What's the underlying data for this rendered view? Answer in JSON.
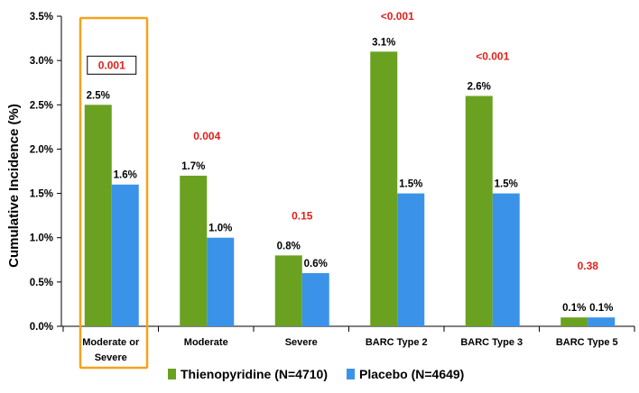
{
  "chart_data": {
    "type": "bar",
    "title": "",
    "xlabel": "",
    "ylabel": "Cumulative Incidence (%)",
    "ylim": [
      0,
      3.5
    ],
    "yticks": [
      "0.0%",
      "0.5%",
      "1.0%",
      "1.5%",
      "2.0%",
      "2.5%",
      "3.0%",
      "3.5%"
    ],
    "ytick_values": [
      0,
      0.5,
      1.0,
      1.5,
      2.0,
      2.5,
      3.0,
      3.5
    ],
    "grid": false,
    "legend_position": "bottom",
    "categories": [
      [
        "Moderate or",
        "Severe"
      ],
      [
        "Moderate"
      ],
      [
        "Severe"
      ],
      [
        "BARC Type 2"
      ],
      [
        "BARC Type 3"
      ],
      [
        "BARC Type 5"
      ]
    ],
    "series": [
      {
        "name": "Thienopyridine (N=4710)",
        "color": "#6aa121",
        "values": [
          2.5,
          1.7,
          0.8,
          3.1,
          2.6,
          0.1
        ],
        "labels": [
          "2.5%",
          "1.7%",
          "0.8%",
          "3.1%",
          "2.6%",
          "0.1%"
        ]
      },
      {
        "name": "Placebo (N=4649)",
        "color": "#3a93e8",
        "values": [
          1.6,
          1.0,
          0.6,
          1.5,
          1.5,
          0.1
        ],
        "labels": [
          "1.6%",
          "1.0%",
          "0.6%",
          "1.5%",
          "1.5%",
          "0.1%"
        ]
      }
    ],
    "p_values": [
      "0.001",
      "0.004",
      "0.15",
      "<0.001",
      "<0.001",
      "0.38"
    ],
    "highlight_category": 0,
    "highlight_color": "#f5a21d",
    "p_value_color": "#e0201b"
  }
}
